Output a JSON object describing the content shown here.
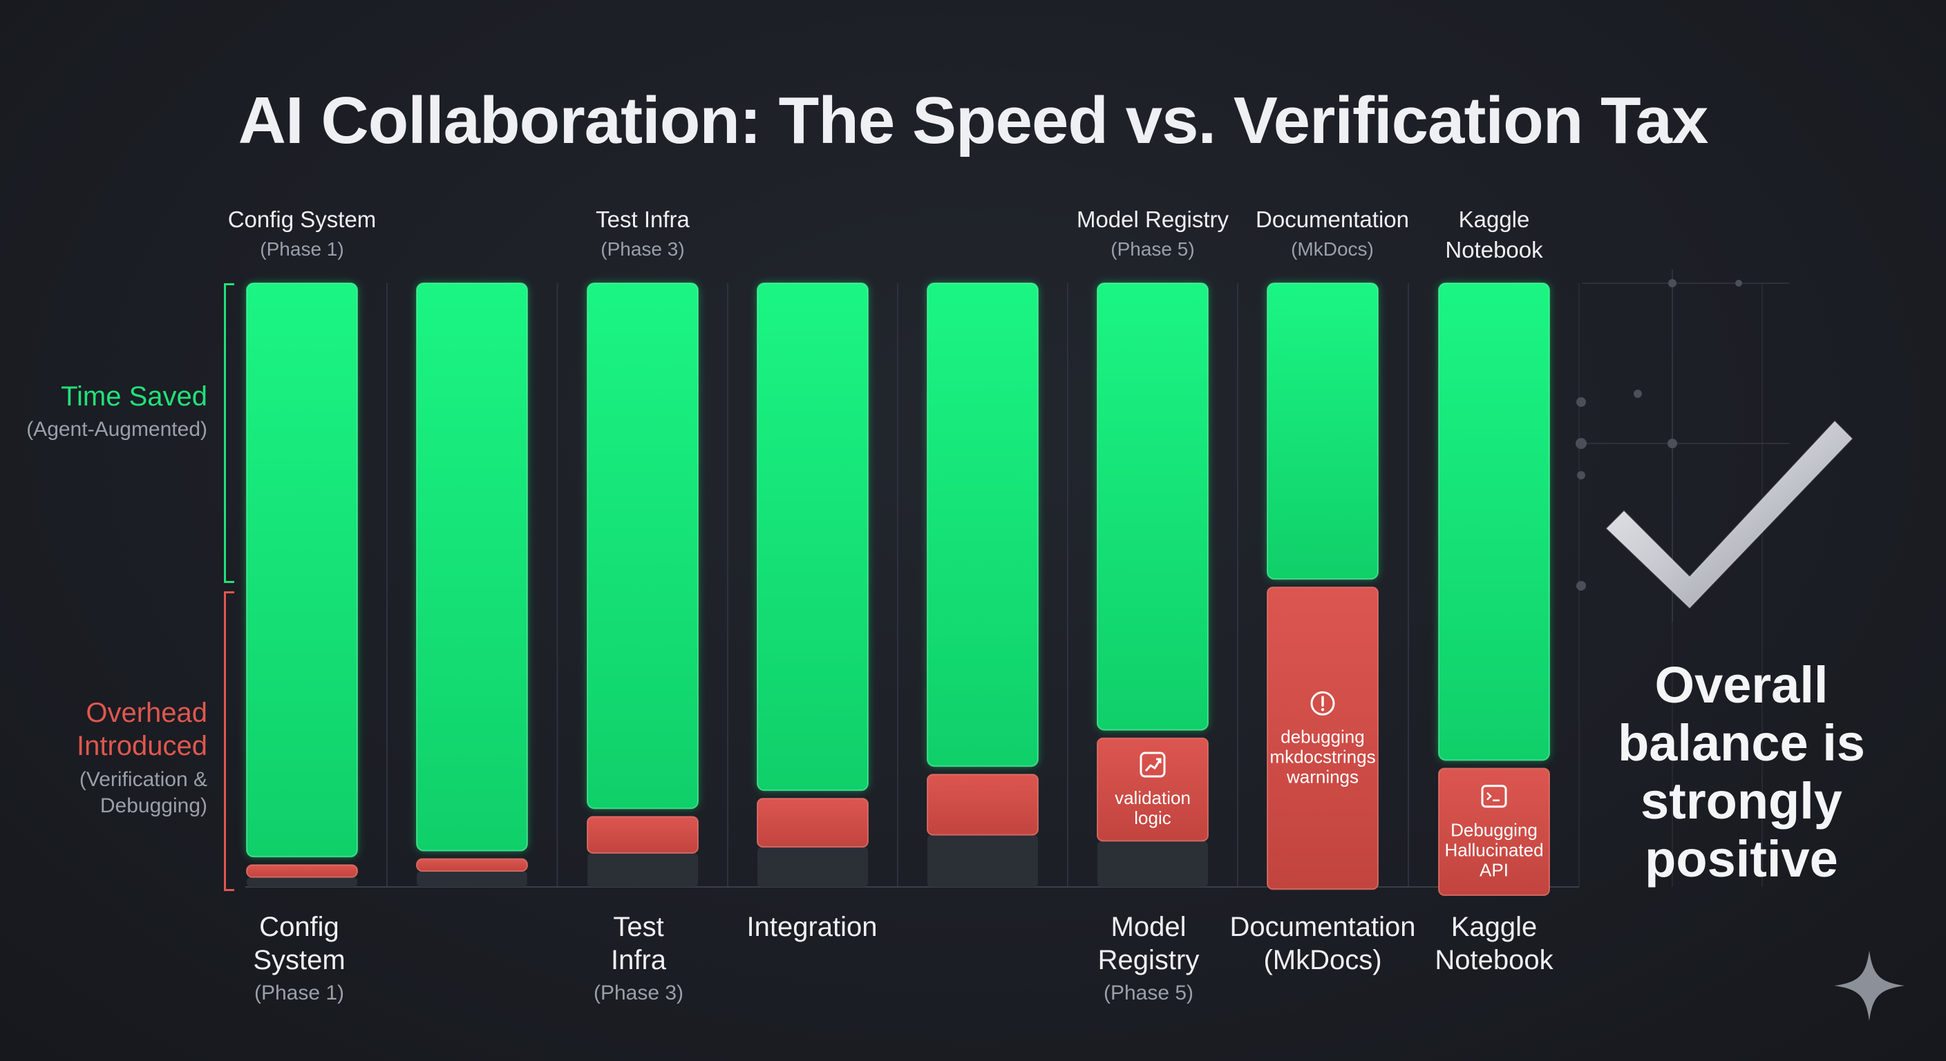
{
  "title": "AI Collaboration: The Speed vs. Verification Tax",
  "side_labels": {
    "time_saved": "Time Saved",
    "time_saved_note": "(Agent-Augmented)",
    "overhead_line1": "Overhead",
    "overhead_line2": "Introduced",
    "overhead_note_line1": "(Verification &",
    "overhead_note_line2": "Debugging)"
  },
  "top_labels": [
    {
      "label": "Config System",
      "sub": "(Phase 1)"
    },
    {
      "label": "Test Infra",
      "sub": "(Phase 3)"
    },
    {
      "label": "Model Registry",
      "sub": "(Phase 5)"
    },
    {
      "label": "Documentation",
      "sub": "(MkDocs)"
    },
    {
      "label": "Kaggle",
      "label2": "Notebook"
    }
  ],
  "bottom_labels": [
    {
      "line1": "Config",
      "line2": "System",
      "sub": "(Phase 1)"
    },
    {
      "line1": "Test",
      "line2": "Infra",
      "sub": "(Phase 3)"
    },
    {
      "line1": "Integration"
    },
    {
      "line1": "Model",
      "line2": "Registry",
      "sub": "(Phase 5)"
    },
    {
      "line1": "Documentation",
      "line2": "(MkDocs)"
    },
    {
      "line1": "Kaggle",
      "line2": "Notebook"
    }
  ],
  "balance": {
    "line1": "Overall",
    "line2": "balance is",
    "line3": "strongly",
    "line4": "positive"
  },
  "colors": {
    "time_saved": "#16ec7c",
    "overhead": "#d2504b",
    "background": "#1b1e24"
  },
  "chart_data": {
    "type": "bar",
    "stacked": true,
    "units": "relative share of bar height (total = 100)",
    "categories": [
      "Config System",
      "",
      "Test Infra",
      "Integration",
      "",
      "Model Registry",
      "Documentation",
      "Kaggle Notebook"
    ],
    "series": [
      {
        "name": "Time Saved",
        "values": [
          95,
          94,
          87,
          84,
          80,
          74,
          49,
          79
        ]
      },
      {
        "name": "Overhead Introduced",
        "values": [
          2,
          2,
          6,
          8,
          10,
          17,
          50,
          21
        ]
      }
    ],
    "annotations": [
      {
        "bar": 5,
        "icon": "chart-icon",
        "lines": [
          "validation",
          "logic"
        ]
      },
      {
        "bar": 6,
        "icon": "alert-icon",
        "lines": [
          "debugging",
          "mkdocstrings",
          "warnings"
        ]
      },
      {
        "bar": 7,
        "icon": "terminal-icon",
        "lines": [
          "Debugging",
          "Hallucinated",
          "API"
        ]
      }
    ],
    "ylim": [
      0,
      100
    ],
    "grid": "vertical separators",
    "legend": "left side labels"
  }
}
